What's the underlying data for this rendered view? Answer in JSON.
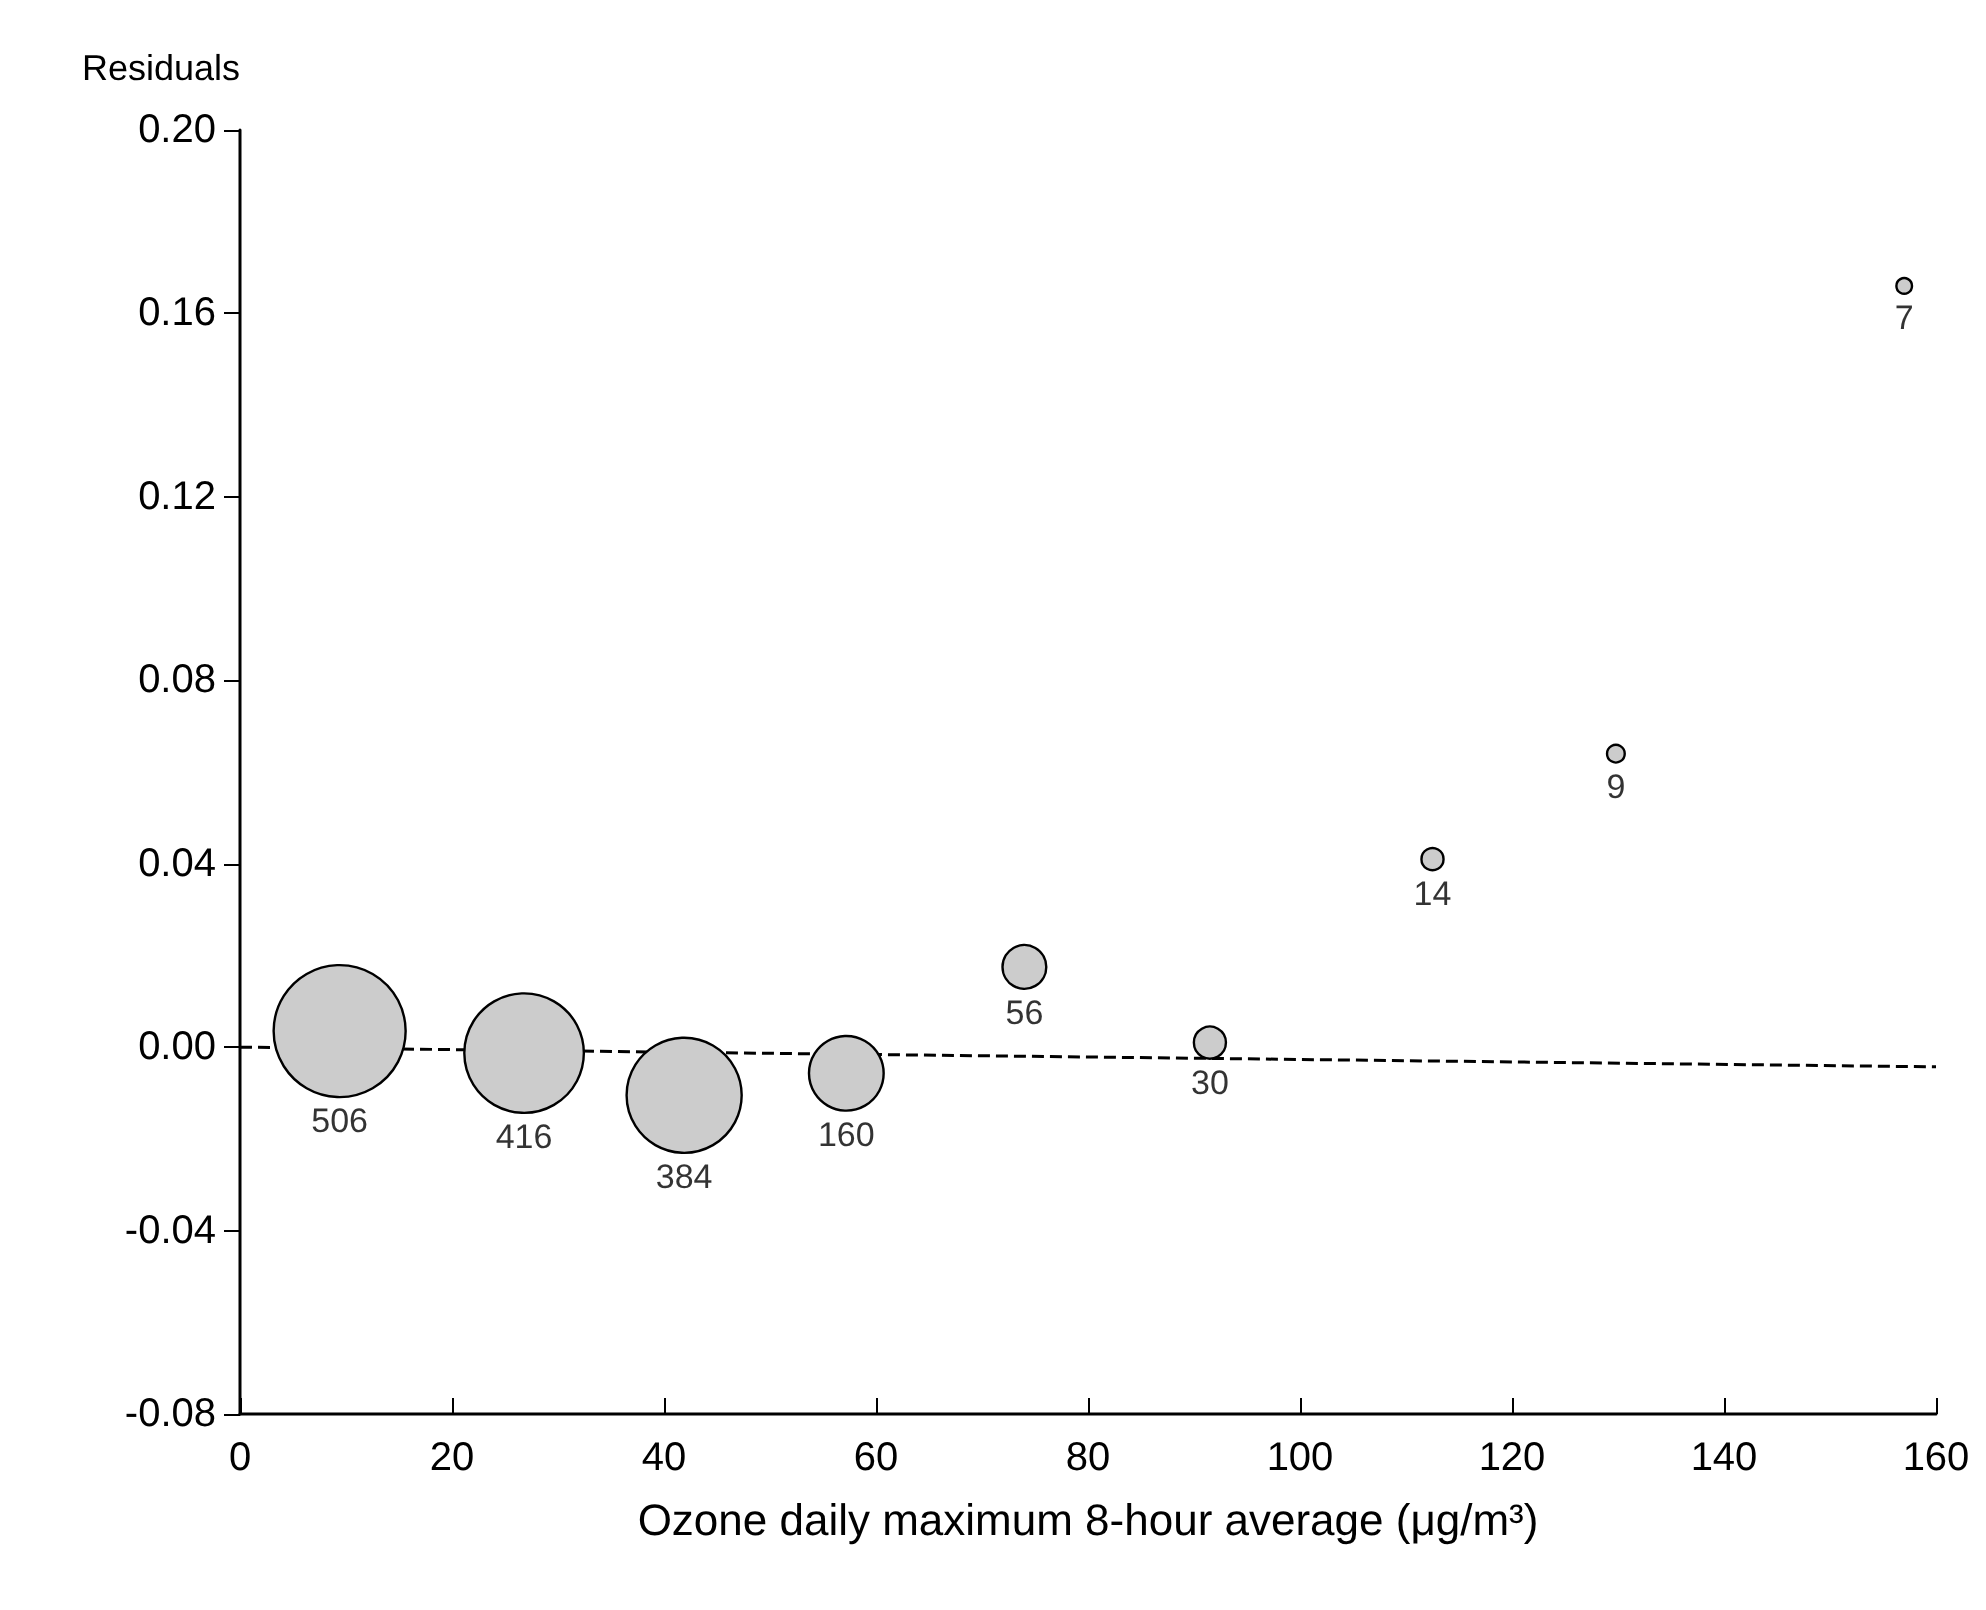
{
  "chart_data": {
    "type": "bubble",
    "ylabel": "Residuals",
    "xlabel": "Ozone daily maximum 8-hour average (μg/m³)",
    "xlim": [
      0,
      160
    ],
    "xticks": [
      0,
      20,
      40,
      60,
      80,
      100,
      120,
      140,
      160
    ],
    "ylim": [
      -0.08,
      0.2
    ],
    "yticks": [
      {
        "value": -0.08,
        "label": "-0.08"
      },
      {
        "value": -0.04,
        "label": "-0.04"
      },
      {
        "value": 0,
        "label": "0.00"
      },
      {
        "value": 0.04,
        "label": "0.04"
      },
      {
        "value": 0.08,
        "label": "0.08"
      },
      {
        "value": 0.12,
        "label": "0.12"
      },
      {
        "value": 0.16,
        "label": "0.16"
      },
      {
        "value": 0.2,
        "label": "0.20"
      }
    ],
    "grid": false,
    "annotations": [
      {
        "text": "506",
        "x": 9.4,
        "y": 0.0035
      },
      {
        "text": "416",
        "x": 26.8,
        "y": -0.0013
      },
      {
        "text": "384",
        "x": 41.9,
        "y": -0.0105
      },
      {
        "text": "160",
        "x": 57.2,
        "y": -0.0057
      },
      {
        "text": "56",
        "x": 74,
        "y": 0.0175
      },
      {
        "text": "30",
        "x": 91.5,
        "y": 0.001
      },
      {
        "text": "14",
        "x": 112.5,
        "y": 0.041
      },
      {
        "text": "9",
        "x": 129.8,
        "y": 0.064
      },
      {
        "text": "7",
        "x": 157,
        "y": 0.166
      }
    ],
    "series": [
      {
        "color": "#cccccc",
        "x": [
          9.4,
          26.8,
          41.9,
          57.2,
          74,
          91.5,
          112.5,
          129.8,
          157
        ],
        "values": [
          0.0035,
          -0.0013,
          -0.0105,
          -0.0057,
          0.0175,
          0.001,
          0.041,
          0.064,
          0.166
        ],
        "sizes": [
          1,
          0.82,
          0.76,
          0.32,
          0.11,
          0.059,
          0.028,
          0.018,
          0.014
        ]
      },
      {
        "type": "line",
        "color": "#000000",
        "x": [
          0,
          160
        ],
        "values": [
          0,
          -0.0043
        ],
        "marker": "none",
        "line_style": "dashed"
      }
    ]
  }
}
